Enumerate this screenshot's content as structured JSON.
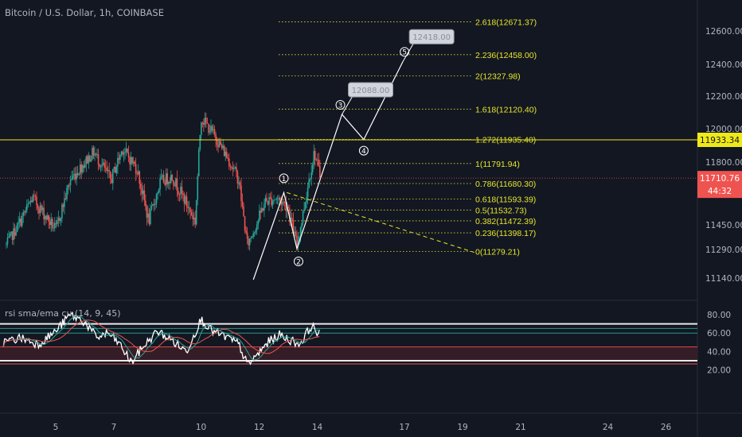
{
  "header": {
    "title": "Bitcoin / U.S. Dollar, 1h, COINBASE"
  },
  "indicator": {
    "title": "rsi sma/ema cu (14, 9, 45)"
  },
  "colors": {
    "background": "#131722",
    "up": "#26a69a",
    "down": "#ef5350",
    "fib": "#e6e62b",
    "wave": "#ffffff",
    "rsi": "#ffffff",
    "rsi_sma": "#26a69a",
    "rsi_ema": "#ef5350"
  },
  "chart_data": [
    {
      "type": "candlestick",
      "title": "Bitcoin / U.S. Dollar, 1h, COINBASE",
      "price_axis": {
        "ticks": [
          "12600.00",
          "12400.00",
          "12200.00",
          "12000.00",
          "11800.00",
          "11450.00",
          "11290.00",
          "11140.00"
        ],
        "values": [
          12600,
          12400,
          12200,
          12000,
          11800,
          11450,
          11290,
          11140
        ]
      },
      "time_axis": {
        "ticks": [
          "5",
          "7",
          "10",
          "12",
          "14",
          "17",
          "19",
          "21",
          "24",
          "26"
        ],
        "values": [
          5,
          7,
          10,
          12,
          14,
          17,
          19,
          21,
          24,
          26
        ]
      },
      "price_range_approx": [
        11100,
        12090
      ],
      "date_range": [
        3.2,
        14.1
      ],
      "key_points": [
        {
          "date": 3.3,
          "price": 11320
        },
        {
          "date": 4.2,
          "price": 11600
        },
        {
          "date": 5.0,
          "price": 11420
        },
        {
          "date": 5.5,
          "price": 11700
        },
        {
          "date": 6.3,
          "price": 11860
        },
        {
          "date": 6.9,
          "price": 11700
        },
        {
          "date": 7.3,
          "price": 11880
        },
        {
          "date": 7.8,
          "price": 11760
        },
        {
          "date": 8.2,
          "price": 11470
        },
        {
          "date": 8.6,
          "price": 11690
        },
        {
          "date": 9.0,
          "price": 11720
        },
        {
          "date": 9.4,
          "price": 11600
        },
        {
          "date": 9.8,
          "price": 11470
        },
        {
          "date": 10.0,
          "price": 12070
        },
        {
          "date": 10.5,
          "price": 11950
        },
        {
          "date": 11.0,
          "price": 11800
        },
        {
          "date": 11.3,
          "price": 11700
        },
        {
          "date": 11.6,
          "price": 11320
        },
        {
          "date": 11.9,
          "price": 11450
        },
        {
          "date": 12.2,
          "price": 11580
        },
        {
          "date": 12.6,
          "price": 11600
        },
        {
          "date": 13.0,
          "price": 11550
        },
        {
          "date": 13.3,
          "price": 11320
        },
        {
          "date": 13.7,
          "price": 11690
        },
        {
          "date": 13.9,
          "price": 11860
        },
        {
          "date": 14.1,
          "price": 11720
        }
      ],
      "current_price": {
        "value": "11710.76",
        "countdown": "44:32"
      },
      "horizontal_level": {
        "value": "11933.34"
      },
      "fibonacci": [
        {
          "ratio": "0",
          "price": "11279.21",
          "label": "0(11279.21)"
        },
        {
          "ratio": "0.236",
          "price": "11398.17",
          "label": "0.236(11398.17)"
        },
        {
          "ratio": "0.382",
          "price": "11472.39",
          "label": "0.382(11472.39)"
        },
        {
          "ratio": "0.5",
          "price": "11532.73",
          "label": "0.5(11532.73)"
        },
        {
          "ratio": "0.618",
          "price": "11593.39",
          "label": "0.618(11593.39)"
        },
        {
          "ratio": "0.786",
          "price": "11680.30",
          "label": "0.786(11680.30)"
        },
        {
          "ratio": "1",
          "price": "11791.94",
          "label": "1(11791.94)"
        },
        {
          "ratio": "1.272",
          "price": "11935.40",
          "label": "1.272(11935.40)"
        },
        {
          "ratio": "1.618",
          "price": "12120.40",
          "label": "1.618(12120.40)"
        },
        {
          "ratio": "2",
          "price": "12327.98",
          "label": "2(12327.98)"
        },
        {
          "ratio": "2.236",
          "price": "12458.00",
          "label": "2.236(12458.00)"
        },
        {
          "ratio": "2.618",
          "price": "12671.37",
          "label": "2.618(12671.37)"
        }
      ],
      "waves": [
        {
          "label": "1",
          "date": 12.85,
          "price": 11630
        },
        {
          "label": "2",
          "date": 13.3,
          "price": 11295
        },
        {
          "label": "3",
          "date": 14.85,
          "price": 12088
        },
        {
          "label": "4",
          "date": 15.6,
          "price": 11935
        },
        {
          "label": "5",
          "date": 16.95,
          "price": 12418
        }
      ],
      "wave_start": {
        "date": 11.8,
        "price": 11130
      },
      "callouts": [
        {
          "text": "12088.00",
          "date": 14.85,
          "price": 12088
        },
        {
          "text": "12418.00",
          "date": 16.95,
          "price": 12418
        }
      ],
      "trendline": {
        "from": {
          "date": 12.95,
          "price": 11630
        },
        "to": {
          "date": 19.4,
          "price": 11275
        }
      }
    },
    {
      "type": "line",
      "title": "rsi sma/ema cu (14, 9, 45)",
      "y_axis": {
        "ticks": [
          "80.00",
          "60.00",
          "40.00",
          "20.00"
        ],
        "values": [
          80,
          60,
          40,
          20
        ]
      },
      "levels": [
        70,
        65,
        60,
        45,
        30
      ],
      "oversold_zone": [
        30,
        45
      ],
      "rsi_key_points": [
        {
          "date": 3.2,
          "value": 50
        },
        {
          "date": 3.8,
          "value": 55
        },
        {
          "date": 4.4,
          "value": 48
        },
        {
          "date": 5.0,
          "value": 62
        },
        {
          "date": 5.5,
          "value": 80
        },
        {
          "date": 6.0,
          "value": 72
        },
        {
          "date": 6.4,
          "value": 55
        },
        {
          "date": 6.8,
          "value": 60
        },
        {
          "date": 7.2,
          "value": 48
        },
        {
          "date": 7.6,
          "value": 28
        },
        {
          "date": 8.0,
          "value": 45
        },
        {
          "date": 8.5,
          "value": 62
        },
        {
          "date": 9.0,
          "value": 52
        },
        {
          "date": 9.5,
          "value": 40
        },
        {
          "date": 10.0,
          "value": 75
        },
        {
          "date": 10.4,
          "value": 62
        },
        {
          "date": 10.9,
          "value": 55
        },
        {
          "date": 11.3,
          "value": 48
        },
        {
          "date": 11.6,
          "value": 25
        },
        {
          "date": 11.9,
          "value": 35
        },
        {
          "date": 12.3,
          "value": 50
        },
        {
          "date": 12.7,
          "value": 58
        },
        {
          "date": 13.1,
          "value": 52
        },
        {
          "date": 13.4,
          "value": 48
        },
        {
          "date": 13.8,
          "value": 68
        },
        {
          "date": 14.1,
          "value": 58
        }
      ]
    }
  ]
}
